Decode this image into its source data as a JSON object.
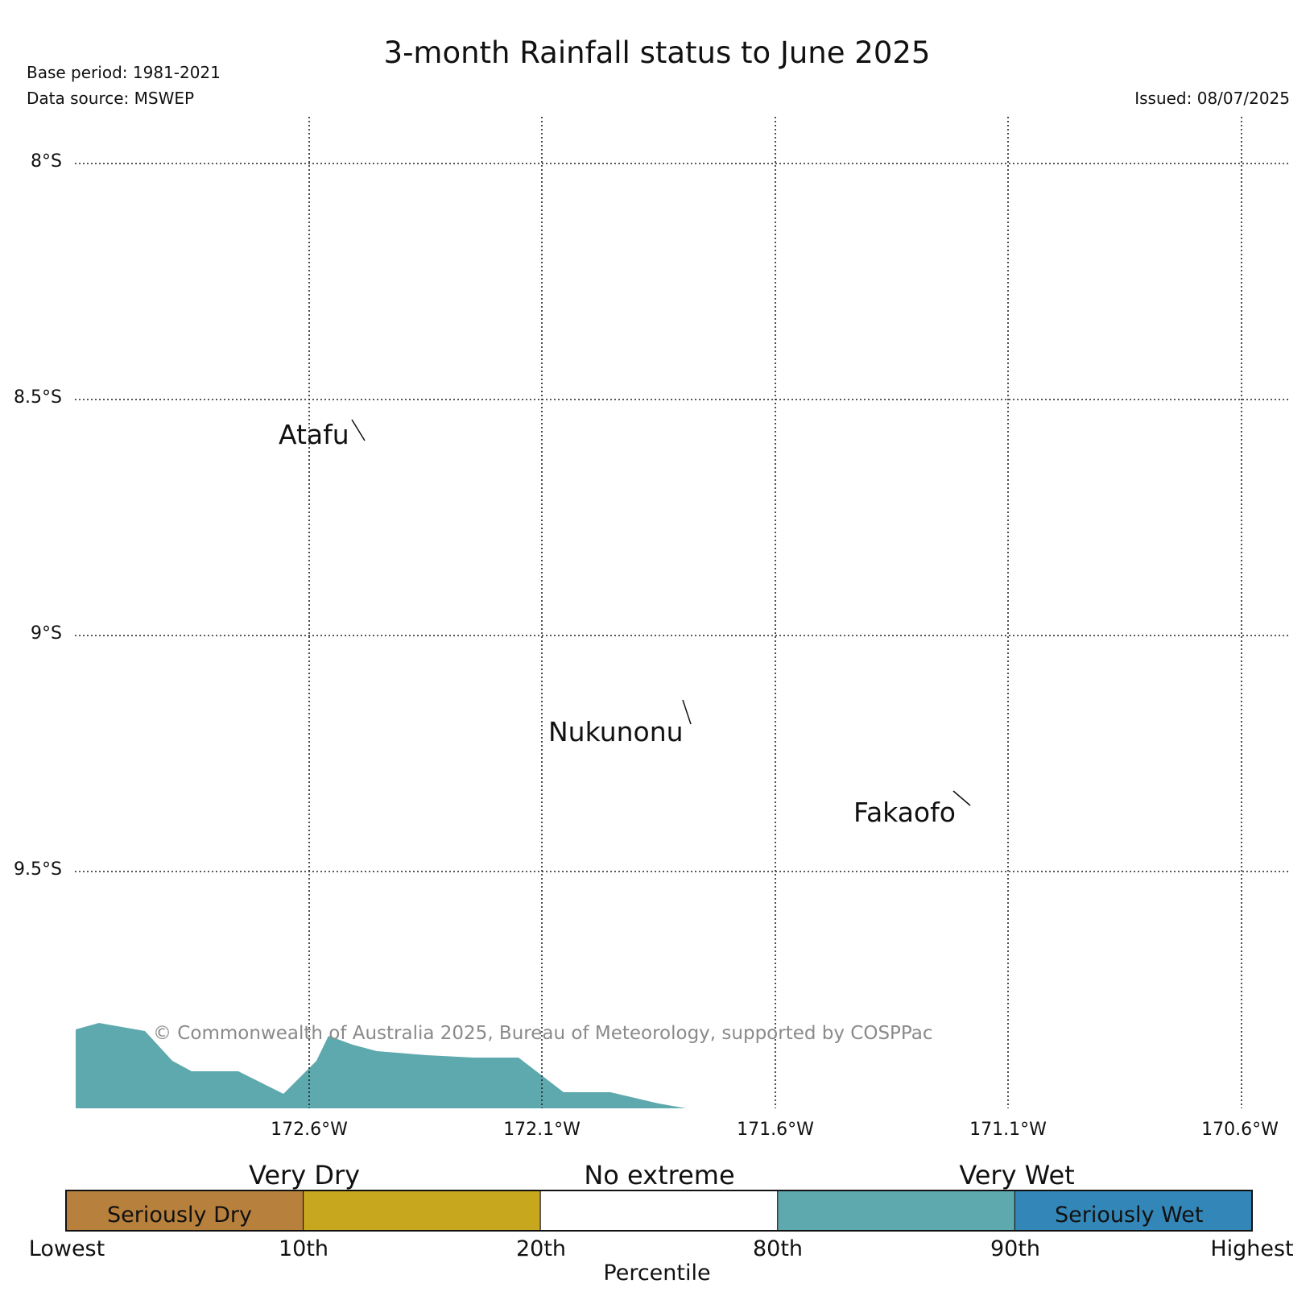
{
  "header": {
    "title": "3-month Rainfall status to June 2025",
    "base_period": "Base period: 1981-2021",
    "data_source": "Data source: MSWEP",
    "issued": "Issued: 08/07/2025"
  },
  "map": {
    "lat_labels": [
      "8°S",
      "8.5°S",
      "9°S",
      "9.5°S"
    ],
    "lon_labels": [
      "172.6°W",
      "172.1°W",
      "171.6°W",
      "171.1°W",
      "170.6°W"
    ],
    "places": [
      "Atafu",
      "Nukunonu",
      "Fakaofo"
    ],
    "copyright": "© Commonwealth of Australia 2025, Bureau of Meteorology, supported by COSPPac",
    "shaded_category": "Very Wet",
    "grid": "dotted"
  },
  "legend": {
    "category_labels": [
      "Very Dry",
      "No extreme",
      "Very Wet"
    ],
    "segments": [
      {
        "label": "Seriously Dry",
        "color": "#b8803d"
      },
      {
        "label": "",
        "color": "#c6a71d"
      },
      {
        "label": "",
        "color": "#ffffff"
      },
      {
        "label": "",
        "color": "#5ea9ae"
      },
      {
        "label": "Seriously Wet",
        "color": "#3387b8"
      }
    ],
    "ticks": [
      "Lowest",
      "10th",
      "20th",
      "80th",
      "90th",
      "Highest"
    ],
    "axis_label": "Percentile"
  }
}
